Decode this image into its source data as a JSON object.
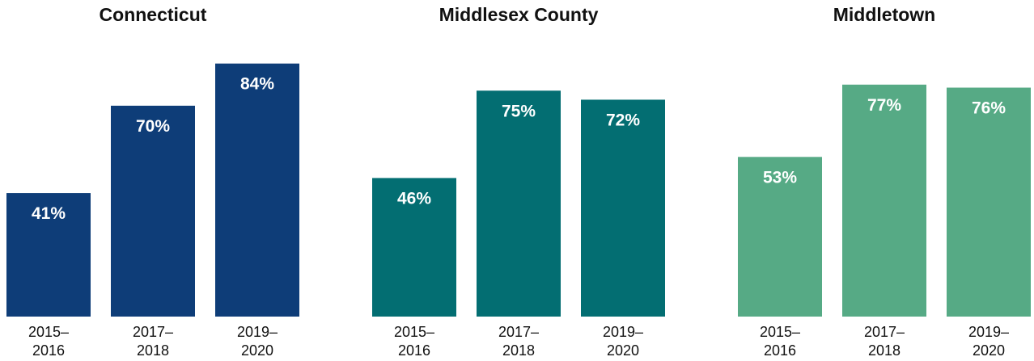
{
  "chart_data": [
    {
      "type": "bar",
      "title": "Connecticut",
      "categories": [
        [
          "2015–",
          "2016"
        ],
        [
          "2017–",
          "2018"
        ],
        [
          "2019–",
          "2020"
        ]
      ],
      "values": [
        41,
        70,
        84
      ],
      "value_labels": [
        "41%",
        "70%",
        "84%"
      ],
      "color": "#0e3d78",
      "xlabel": "",
      "ylabel": "",
      "ylim": [
        0,
        100
      ],
      "grid": false
    },
    {
      "type": "bar",
      "title": "Middlesex County",
      "categories": [
        [
          "2015–",
          "2016"
        ],
        [
          "2017–",
          "2018"
        ],
        [
          "2019–",
          "2020"
        ]
      ],
      "values": [
        46,
        75,
        72
      ],
      "value_labels": [
        "46%",
        "75%",
        "72%"
      ],
      "color": "#036e72",
      "xlabel": "",
      "ylabel": "",
      "ylim": [
        0,
        100
      ],
      "grid": false
    },
    {
      "type": "bar",
      "title": "Middletown",
      "categories": [
        [
          "2015–",
          "2016"
        ],
        [
          "2017–",
          "2018"
        ],
        [
          "2019–",
          "2020"
        ]
      ],
      "values": [
        53,
        77,
        76
      ],
      "value_labels": [
        "53%",
        "77%",
        "76%"
      ],
      "color": "#56aa85",
      "xlabel": "",
      "ylabel": "",
      "ylim": [
        0,
        100
      ],
      "grid": false
    }
  ]
}
